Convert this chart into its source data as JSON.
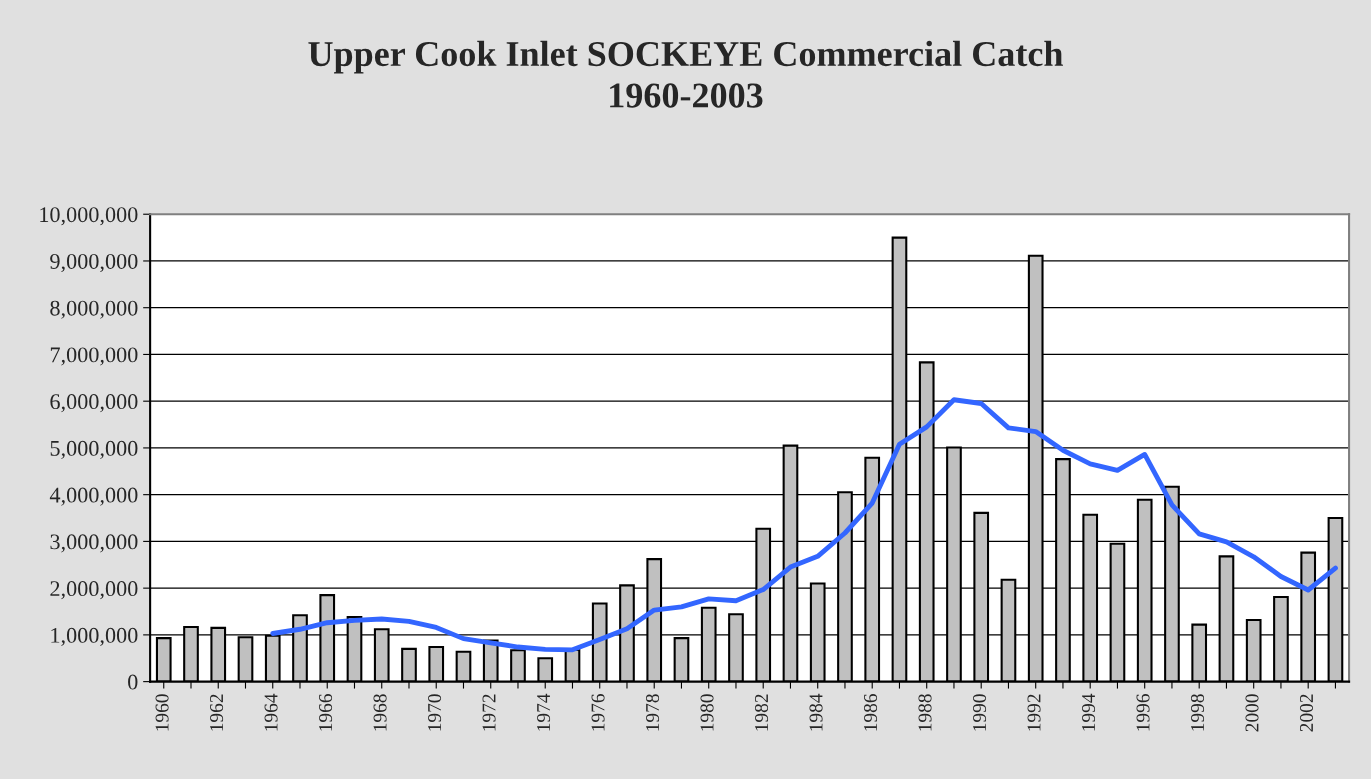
{
  "chart_data": {
    "type": "bar",
    "title": "Upper Cook Inlet SOCKEYE Commercial Catch\n1960-2003",
    "categories": [
      "1960",
      null,
      "1962",
      null,
      "1964",
      null,
      "1966",
      null,
      "1968",
      null,
      "1970",
      null,
      "1972",
      null,
      "1974",
      null,
      "1976",
      null,
      "1978",
      null,
      "1980",
      null,
      "1982",
      null,
      "1984",
      null,
      "1986",
      null,
      "1988",
      null,
      "1990",
      null,
      "1992",
      null,
      "1994",
      null,
      "1996",
      null,
      "1998",
      null,
      "2000",
      null,
      "2002",
      null
    ],
    "series": [
      {
        "color": "#c0c0c0",
        "values": [
          930000,
          1170000,
          1150000,
          950000,
          980000,
          1420000,
          1850000,
          1380000,
          1120000,
          700000,
          740000,
          640000,
          880000,
          670000,
          500000,
          680000,
          1670000,
          2060000,
          2620000,
          930000,
          1580000,
          1440000,
          3270000,
          5050000,
          2100000,
          4050000,
          4790000,
          9500000,
          6830000,
          5010000,
          3610000,
          2180000,
          9110000,
          4760000,
          3570000,
          2950000,
          3890000,
          4170000,
          1220000,
          2680000,
          1320000,
          1810000,
          2760000,
          3500000
        ]
      },
      {
        "type": "line",
        "color": "#3366ff",
        "values": [
          null,
          null,
          null,
          null,
          1030000,
          1120000,
          1260000,
          1310000,
          1340000,
          1290000,
          1160000,
          920000,
          830000,
          740000,
          690000,
          680000,
          900000,
          1130000,
          1530000,
          1600000,
          1770000,
          1730000,
          1970000,
          2450000,
          2680000,
          3180000,
          3820000,
          5080000,
          5450000,
          6030000,
          5950000,
          5430000,
          5350000,
          4950000,
          4660000,
          4520000,
          4860000,
          3780000,
          3160000,
          2990000,
          2670000,
          2250000,
          1960000,
          2430000
        ]
      }
    ],
    "ylim": [
      0,
      10000000
    ],
    "yticks": [
      {
        "value": 0,
        "label": "0"
      },
      {
        "value": 1000000,
        "label": "1,000,000"
      },
      {
        "value": 2000000,
        "label": "2,000,000"
      },
      {
        "value": 3000000,
        "label": "3,000,000"
      },
      {
        "value": 4000000,
        "label": "4,000,000"
      },
      {
        "value": 5000000,
        "label": "5,000,000"
      },
      {
        "value": 6000000,
        "label": "6,000,000"
      },
      {
        "value": 7000000,
        "label": "7,000,000"
      },
      {
        "value": 8000000,
        "label": "8,000,000"
      },
      {
        "value": 9000000,
        "label": "9,000,000"
      },
      {
        "value": 10000000,
        "label": "10,000,000"
      }
    ],
    "grid": "y"
  }
}
